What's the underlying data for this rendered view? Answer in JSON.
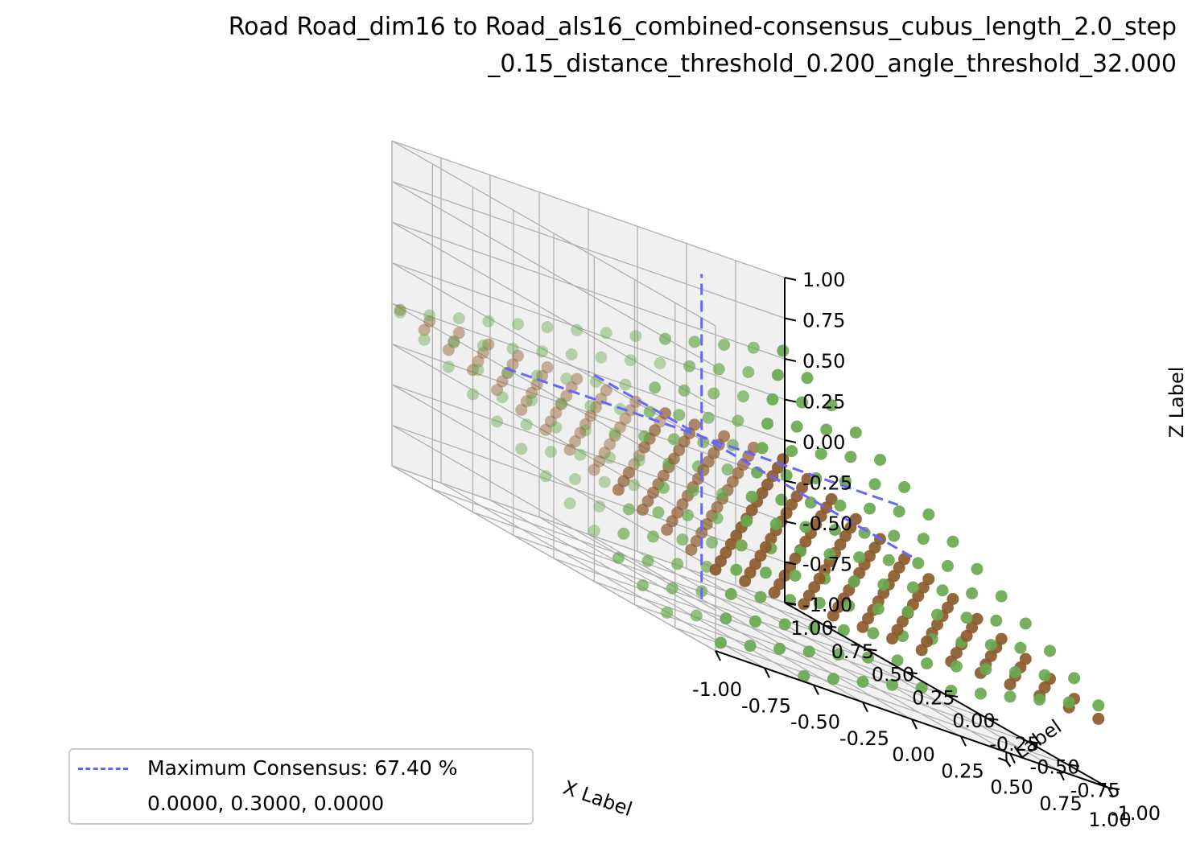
{
  "title": {
    "line1": "Road Road_dim16 to Road_als16_combined-consensus_cubus_length_2.0_step",
    "line2": "_0.15_distance_threshold_0.200_angle_threshold_32.000"
  },
  "chart_data": {
    "type": "scatter",
    "projection": "3d",
    "xlabel": "X Label",
    "ylabel": "Y Label",
    "zlabel": "Z Label",
    "xlim": [
      -1.0,
      1.0
    ],
    "ylim": [
      -1.0,
      1.0
    ],
    "zlim": [
      -1.0,
      1.0
    ],
    "ticks": [
      "-1.00",
      "-0.75",
      "-0.50",
      "-0.25",
      "0.00",
      "0.25",
      "0.50",
      "0.75",
      "1.00"
    ],
    "grid": true,
    "grid_step": 0.15,
    "series": [
      {
        "color": "#8b5a2b",
        "z_at_origin": -0.3,
        "z_slope_x": -0.05,
        "z_slope_y": 0.25
      },
      {
        "color": "#6aa84f",
        "z_at_origin": -0.25,
        "z_slope_x": 0.3,
        "z_slope_y": 0.55
      }
    ],
    "consensus_lines": {
      "color": "#6666ff",
      "style": "dashed",
      "center": [
        0.0,
        0.3,
        0.0
      ]
    },
    "legend": {
      "location": "lower-left",
      "entries": [
        {
          "label": "Maximum Consensus: 67.40 %"
        },
        {
          "label": "0.0000, 0.3000, 0.0000"
        }
      ]
    }
  }
}
